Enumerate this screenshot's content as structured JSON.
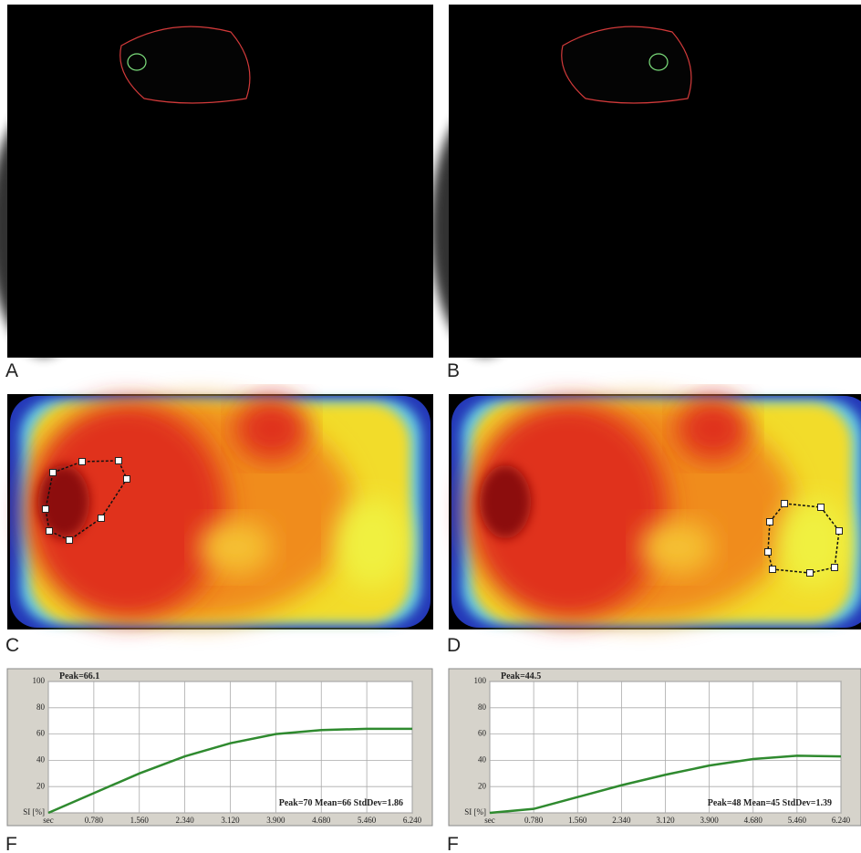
{
  "panels": [
    {
      "label": "A"
    },
    {
      "label": "B"
    },
    {
      "label": "C"
    },
    {
      "label": "D"
    },
    {
      "label": "F"
    },
    {
      "label": "F"
    }
  ],
  "chart_data": [
    {
      "type": "line",
      "color": "#2f8a2f",
      "x": [
        0,
        0.78,
        1.56,
        2.34,
        3.12,
        3.9,
        4.68,
        5.46,
        6.24
      ],
      "values": [
        0,
        15,
        30,
        43,
        53,
        60,
        63,
        64,
        64
      ],
      "xlim": [
        0,
        6.24
      ],
      "ylim": [
        0,
        100
      ],
      "xticks": [
        {
          "value": 0,
          "label": "sec"
        },
        {
          "value": 0.78,
          "label": "0.780"
        },
        {
          "value": 1.56,
          "label": "1.560"
        },
        {
          "value": 2.34,
          "label": "2.340"
        },
        {
          "value": 3.12,
          "label": "3.120"
        },
        {
          "value": 3.9,
          "label": "3.900"
        },
        {
          "value": 4.68,
          "label": "4.680"
        },
        {
          "value": 5.46,
          "label": "5.460"
        },
        {
          "value": 6.24,
          "label": "6.240"
        }
      ],
      "yticks": [
        {
          "value": 0,
          "label": "SI [%]"
        },
        20,
        40,
        60,
        80,
        100
      ],
      "grid": true,
      "annotations": [
        "Peak=66.1",
        "Peak=70 Mean=66 StdDev=1.86"
      ]
    },
    {
      "type": "line",
      "color": "#2f8a2f",
      "x": [
        0,
        0.78,
        1.56,
        2.34,
        3.12,
        3.9,
        4.68,
        5.46,
        6.24
      ],
      "values": [
        0,
        3,
        12,
        21,
        29,
        36,
        41,
        43.5,
        43
      ],
      "xlim": [
        0,
        6.24
      ],
      "ylim": [
        0,
        100
      ],
      "xticks": [
        {
          "value": 0,
          "label": "sec"
        },
        {
          "value": 0.78,
          "label": "0.780"
        },
        {
          "value": 1.56,
          "label": "1.560"
        },
        {
          "value": 2.34,
          "label": "2.340"
        },
        {
          "value": 3.12,
          "label": "3.120"
        },
        {
          "value": 3.9,
          "label": "3.900"
        },
        {
          "value": 4.68,
          "label": "4.680"
        },
        {
          "value": 5.46,
          "label": "5.460"
        },
        {
          "value": 6.24,
          "label": "6.240"
        }
      ],
      "yticks": [
        {
          "value": 0,
          "label": "SI [%]"
        },
        20,
        40,
        60,
        80,
        100
      ],
      "grid": true,
      "annotations": [
        "Peak=44.5",
        "Peak=48 Mean=45 StdDev=1.39"
      ]
    }
  ]
}
